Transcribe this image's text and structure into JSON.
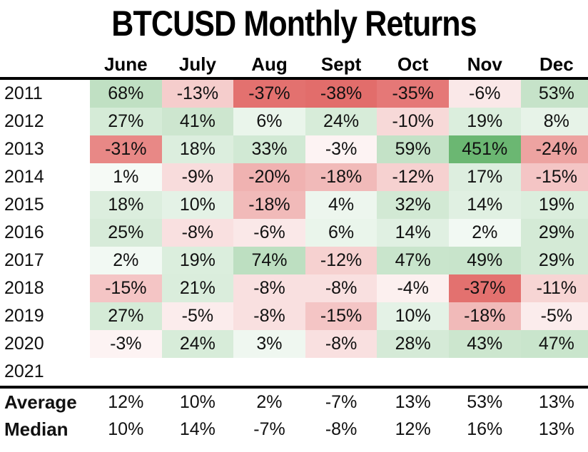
{
  "title": "BTCUSD Monthly Returns",
  "chart_data": {
    "type": "table",
    "title": "BTCUSD Monthly Returns",
    "columns": [
      "June",
      "July",
      "Aug",
      "Sept",
      "Oct",
      "Nov",
      "Dec"
    ],
    "rows": [
      {
        "year": "2011",
        "values": [
          68,
          -13,
          -37,
          -38,
          -35,
          -6,
          53
        ]
      },
      {
        "year": "2012",
        "values": [
          27,
          41,
          6,
          24,
          -10,
          19,
          8
        ]
      },
      {
        "year": "2013",
        "values": [
          -31,
          18,
          33,
          -3,
          59,
          451,
          -24
        ]
      },
      {
        "year": "2014",
        "values": [
          1,
          -9,
          -20,
          -18,
          -12,
          17,
          -15
        ]
      },
      {
        "year": "2015",
        "values": [
          18,
          10,
          -18,
          4,
          32,
          14,
          19
        ]
      },
      {
        "year": "2016",
        "values": [
          25,
          -8,
          -6,
          6,
          14,
          2,
          29
        ]
      },
      {
        "year": "2017",
        "values": [
          2,
          19,
          74,
          -12,
          47,
          49,
          29
        ]
      },
      {
        "year": "2018",
        "values": [
          -15,
          21,
          -8,
          -8,
          -4,
          -37,
          -11
        ]
      },
      {
        "year": "2019",
        "values": [
          27,
          -5,
          -8,
          -15,
          10,
          -18,
          -5
        ]
      },
      {
        "year": "2020",
        "values": [
          -3,
          24,
          3,
          -8,
          28,
          43,
          47
        ]
      },
      {
        "year": "2021",
        "values": [
          null,
          null,
          null,
          null,
          null,
          null,
          null
        ]
      }
    ],
    "summary": [
      {
        "label": "Average",
        "values": [
          12,
          10,
          2,
          -7,
          13,
          53,
          13
        ]
      },
      {
        "label": "Median",
        "values": [
          10,
          14,
          -7,
          -8,
          12,
          16,
          13
        ]
      }
    ],
    "unit": "%",
    "colors": {
      "positive": "#63b36b",
      "negative": "#e0605e"
    }
  }
}
